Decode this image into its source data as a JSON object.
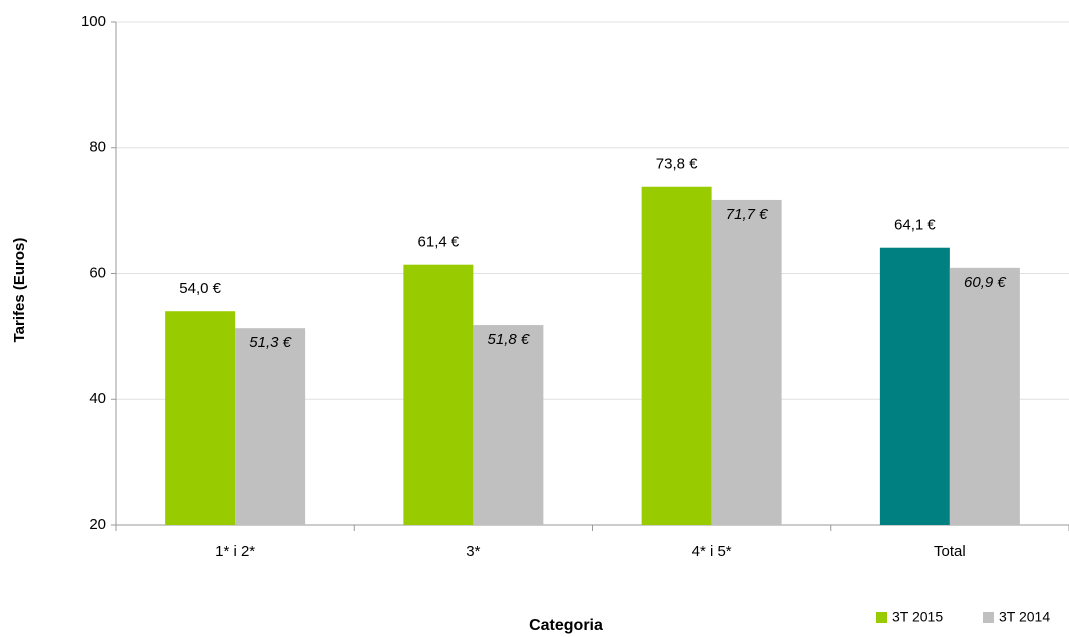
{
  "chart_data": {
    "type": "bar",
    "x_label": "Categoria",
    "y_label": "Tarifes (Euros)",
    "categories": [
      "1* i 2*",
      "3*",
      "4* i 5*",
      "Total"
    ],
    "series": [
      {
        "name": "3T 2015",
        "color": "#99cc00",
        "colors": [
          "#99cc00",
          "#99cc00",
          "#99cc00",
          "#008080"
        ],
        "values": [
          54.0,
          61.4,
          73.8,
          64.1
        ],
        "value_labels": [
          "54,0 €",
          "61,4 €",
          "73,8 €",
          "64,1 €"
        ]
      },
      {
        "name": "3T 2014",
        "color": "#c0c0c0",
        "values": [
          51.3,
          51.8,
          71.7,
          60.9
        ],
        "value_labels": [
          "51,3 €",
          "51,8 €",
          "71,7 €",
          "60,9 €"
        ]
      }
    ],
    "ylim": [
      20,
      100
    ],
    "yticks": [
      20,
      40,
      60,
      80,
      100
    ],
    "grid": true,
    "legend": "bottom-right"
  }
}
